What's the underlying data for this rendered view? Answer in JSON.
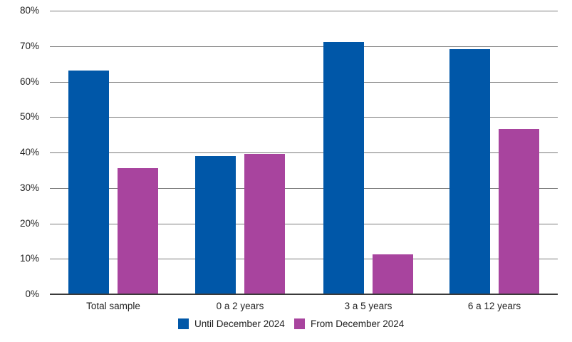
{
  "chart_data": {
    "type": "bar",
    "categories": [
      "Total sample",
      "0 a 2 years",
      "3 a 5 years",
      "6 a 12 years"
    ],
    "series": [
      {
        "name": "Until December 2024",
        "color": "#0057A8",
        "values": [
          63,
          38.7,
          71,
          69
        ]
      },
      {
        "name": "From December 2024",
        "color": "#A8449E",
        "values": [
          35.4,
          39.4,
          11,
          46.5
        ]
      }
    ],
    "title": "",
    "xlabel": "",
    "ylabel": "",
    "ylim": [
      0,
      80
    ],
    "y_tick_labels": [
      "0%",
      "10%",
      "20%",
      "30%",
      "40%",
      "50%",
      "60%",
      "70%",
      "80%"
    ],
    "y_tick_step": 10,
    "grid": true,
    "legend_position": "bottom"
  },
  "colors": {
    "grid_line": "#7b7b7b",
    "axis_line": "#3a3a3a",
    "text": "#1f1f1f",
    "background": "#ffffff"
  }
}
